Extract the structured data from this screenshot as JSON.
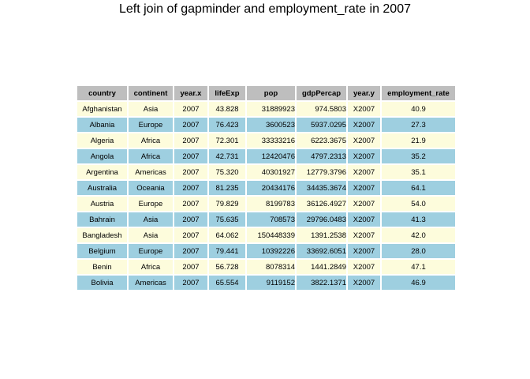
{
  "title": "Left join of gapminder and employment_rate in 2007",
  "table": {
    "headers": [
      "country",
      "continent",
      "year.x",
      "lifeExp",
      "pop",
      "gdpPercap",
      "year.y",
      "employment_rate"
    ],
    "rows": [
      [
        "Afghanistan",
        "Asia",
        "2007",
        "43.828",
        "31889923",
        "974.5803",
        "X2007",
        "40.9"
      ],
      [
        "Albania",
        "Europe",
        "2007",
        "76.423",
        "3600523",
        "5937.0295",
        "X2007",
        "27.3"
      ],
      [
        "Algeria",
        "Africa",
        "2007",
        "72.301",
        "33333216",
        "6223.3675",
        "X2007",
        "21.9"
      ],
      [
        "Angola",
        "Africa",
        "2007",
        "42.731",
        "12420476",
        "4797.2313",
        "X2007",
        "35.2"
      ],
      [
        "Argentina",
        "Americas",
        "2007",
        "75.320",
        "40301927",
        "12779.3796",
        "X2007",
        "35.1"
      ],
      [
        "Australia",
        "Oceania",
        "2007",
        "81.235",
        "20434176",
        "34435.3674",
        "X2007",
        "64.1"
      ],
      [
        "Austria",
        "Europe",
        "2007",
        "79.829",
        "8199783",
        "36126.4927",
        "X2007",
        "54.0"
      ],
      [
        "Bahrain",
        "Asia",
        "2007",
        "75.635",
        "708573",
        "29796.0483",
        "X2007",
        "41.3"
      ],
      [
        "Bangladesh",
        "Asia",
        "2007",
        "64.062",
        "150448339",
        "1391.2538",
        "X2007",
        "42.0"
      ],
      [
        "Belgium",
        "Europe",
        "2007",
        "79.441",
        "10392226",
        "33692.6051",
        "X2007",
        "28.0"
      ],
      [
        "Benin",
        "Africa",
        "2007",
        "56.728",
        "8078314",
        "1441.2849",
        "X2007",
        "47.1"
      ],
      [
        "Bolivia",
        "Americas",
        "2007",
        "65.554",
        "9119152",
        "3822.1371",
        "X2007",
        "46.9"
      ]
    ]
  }
}
